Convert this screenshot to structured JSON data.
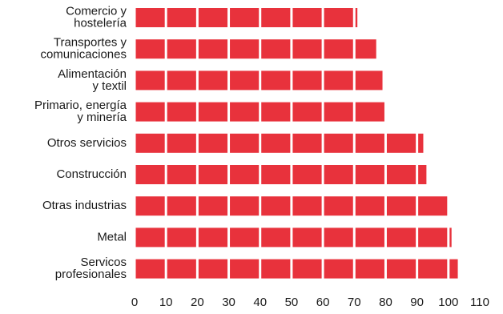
{
  "chart_data": {
    "type": "bar",
    "orientation": "horizontal",
    "categories": [
      "Comercio y\nhostelería",
      "Transportes y\ncomunicaciones",
      "Alimentación\ny textil",
      "Primario, energía\ny minería",
      "Otros servicios",
      "Construcción",
      "Otras industrias",
      "Metal",
      "Servicos\nprofesionales"
    ],
    "values": [
      71,
      77,
      79,
      80,
      92,
      93,
      100,
      101,
      103
    ],
    "color": "#e8323c",
    "xlim": [
      0,
      110
    ],
    "xticks": [
      0,
      10,
      20,
      30,
      40,
      50,
      60,
      70,
      80,
      90,
      100,
      110
    ],
    "grid": true
  }
}
